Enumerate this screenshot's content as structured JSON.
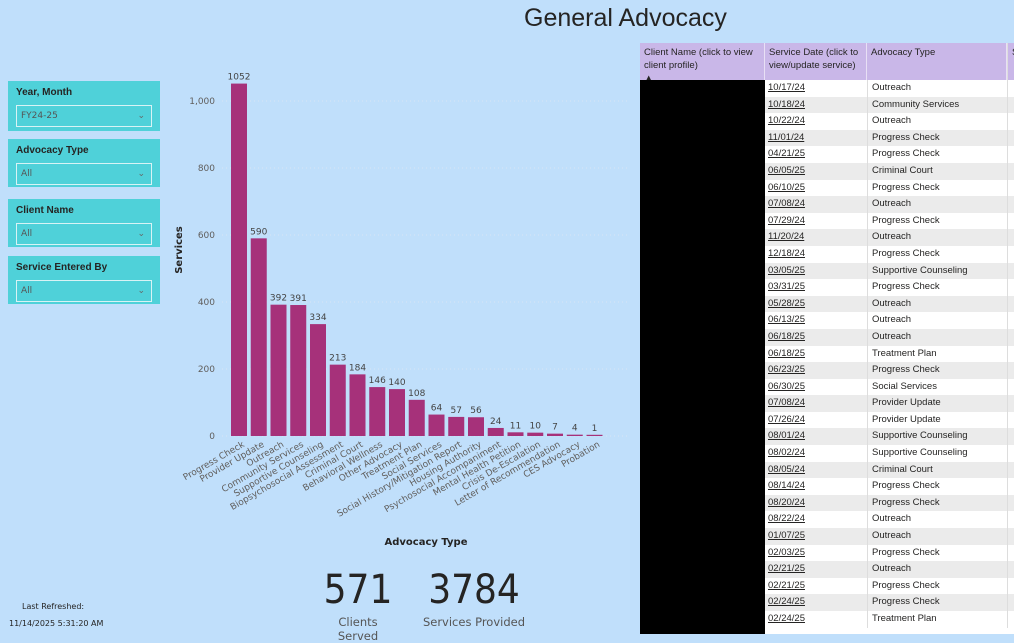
{
  "title": "General Advocacy",
  "slicers": [
    {
      "label": "Year, Month",
      "value": "FY24-25"
    },
    {
      "label": "Advocacy Type",
      "value": "All"
    },
    {
      "label": "Client Name",
      "value": "All"
    },
    {
      "label": "Service Entered By",
      "value": "All"
    }
  ],
  "chart_data": {
    "type": "bar",
    "title": "",
    "xlabel": "Advocacy Type",
    "ylabel": "Services",
    "ylim": [
      0,
      1100
    ],
    "yticks": [
      0,
      200,
      400,
      600,
      800,
      1000
    ],
    "ytick_labels": [
      "0",
      "200",
      "400",
      "600",
      "800",
      "1,000"
    ],
    "categories": [
      "Progress Check",
      "Provider Update",
      "Outreach",
      "Community Services",
      "Supportive Counseling",
      "Biopsychosocial Assessment",
      "Criminal Court",
      "Behavioral Wellness",
      "Other Advocacy",
      "Treatment Plan",
      "Social Services",
      "Social History/Mitigation Report",
      "Housing Authority",
      "Psychosocial Accompaniment",
      "Mental Health Petition",
      "Crisis De-Escalation",
      "Letter of Recommendation",
      "CES Advocacy",
      "Probation"
    ],
    "values": [
      1052,
      590,
      392,
      391,
      334,
      213,
      184,
      146,
      140,
      108,
      64,
      57,
      56,
      24,
      11,
      10,
      7,
      4,
      1
    ],
    "bar_color": "#a6317a"
  },
  "kpis": [
    {
      "value": "571",
      "caption": "Clients Served"
    },
    {
      "value": "3784",
      "caption": "Services Provided"
    }
  ],
  "refresh": {
    "label": "Last Refreshed:",
    "time": "11/14/2025 5:31:20 AM"
  },
  "table": {
    "headers": [
      "Client Name (click to view client profile)",
      "Service Date (click to view/update service)",
      "Advocacy Type",
      "S S"
    ],
    "rows": [
      [
        "10/17/24",
        "Outreach"
      ],
      [
        "10/18/24",
        "Community Services"
      ],
      [
        "10/22/24",
        "Outreach"
      ],
      [
        "11/01/24",
        "Progress Check"
      ],
      [
        "04/21/25",
        "Progress Check"
      ],
      [
        "06/05/25",
        "Criminal Court"
      ],
      [
        "06/10/25",
        "Progress Check"
      ],
      [
        "07/08/24",
        "Outreach"
      ],
      [
        "07/29/24",
        "Progress Check"
      ],
      [
        "11/20/24",
        "Outreach"
      ],
      [
        "12/18/24",
        "Progress Check"
      ],
      [
        "03/05/25",
        "Supportive Counseling"
      ],
      [
        "03/31/25",
        "Progress Check"
      ],
      [
        "05/28/25",
        "Outreach"
      ],
      [
        "06/13/25",
        "Outreach"
      ],
      [
        "06/18/25",
        "Outreach"
      ],
      [
        "06/18/25",
        "Treatment Plan"
      ],
      [
        "06/23/25",
        "Progress Check"
      ],
      [
        "06/30/25",
        "Social Services"
      ],
      [
        "07/08/24",
        "Provider Update"
      ],
      [
        "07/26/24",
        "Provider Update"
      ],
      [
        "08/01/24",
        "Supportive Counseling"
      ],
      [
        "08/02/24",
        "Supportive Counseling"
      ],
      [
        "08/05/24",
        "Criminal Court"
      ],
      [
        "08/14/24",
        "Progress Check"
      ],
      [
        "08/20/24",
        "Progress Check"
      ],
      [
        "08/22/24",
        "Outreach"
      ],
      [
        "01/07/25",
        "Outreach"
      ],
      [
        "02/03/25",
        "Progress Check"
      ],
      [
        "02/21/25",
        "Outreach"
      ],
      [
        "02/21/25",
        "Progress Check"
      ],
      [
        "02/24/25",
        "Progress Check"
      ],
      [
        "02/24/25",
        "Treatment Plan"
      ]
    ]
  }
}
